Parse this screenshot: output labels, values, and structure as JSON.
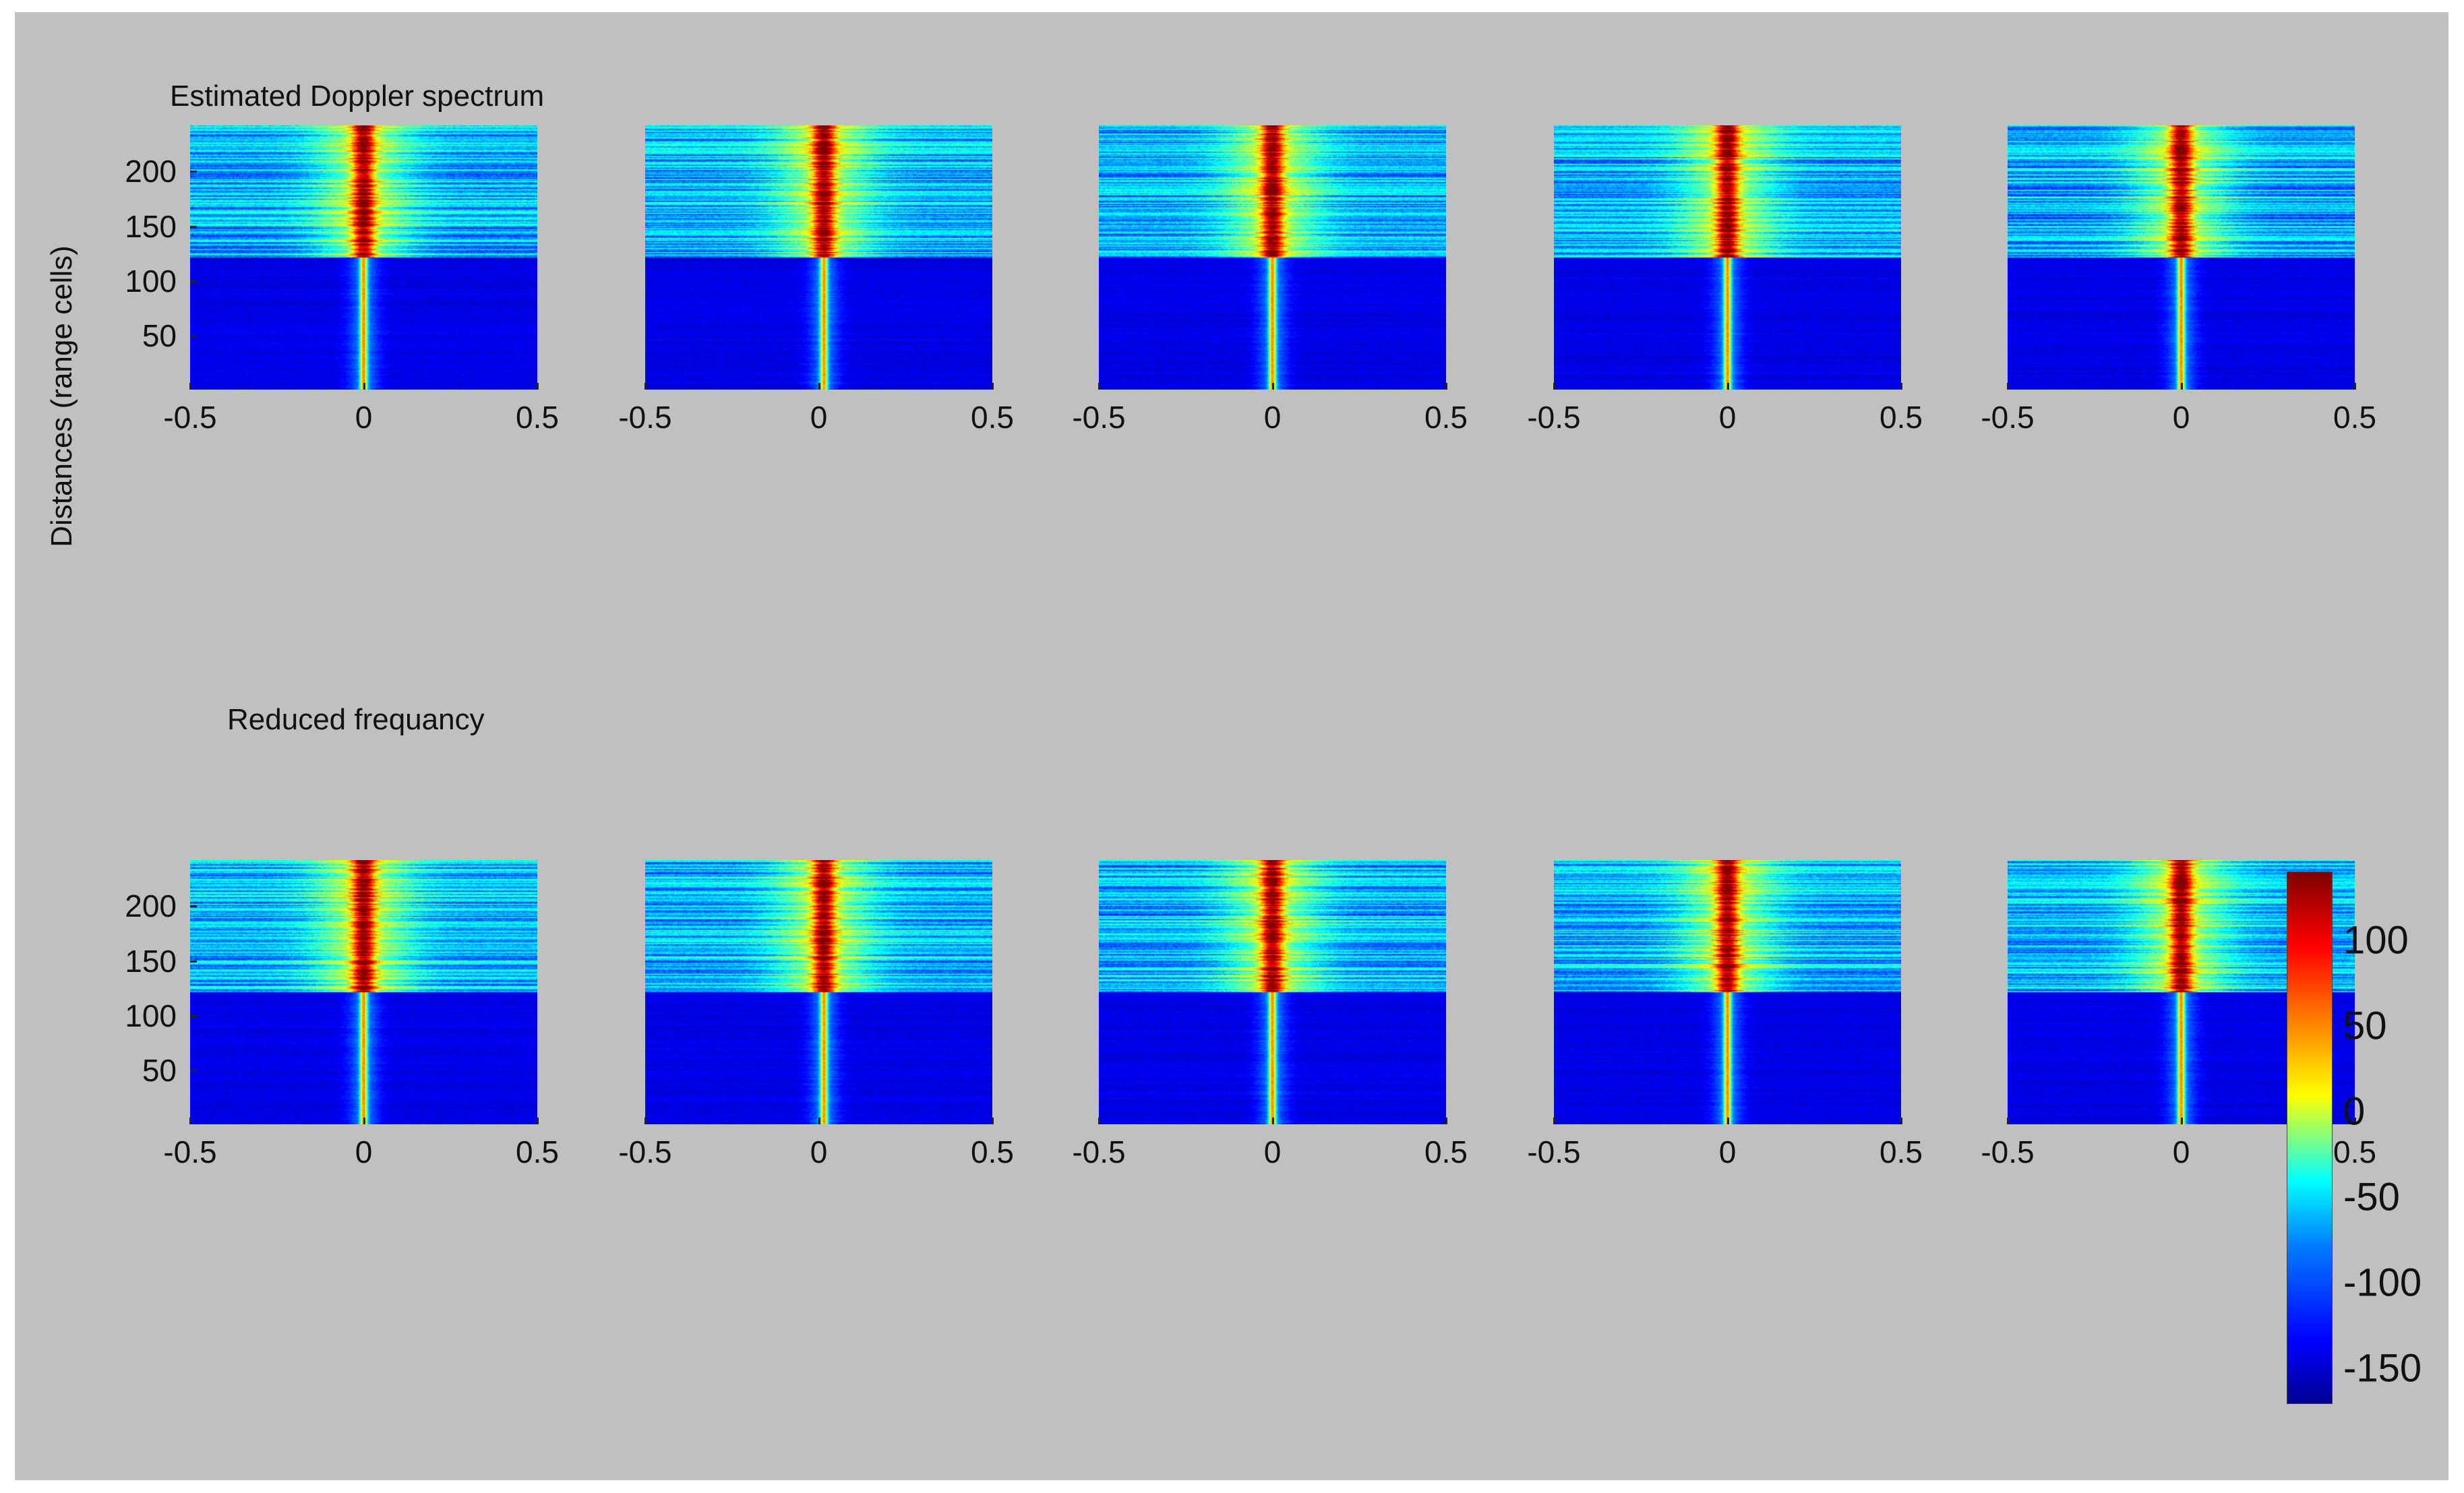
{
  "chart_data": {
    "type": "heatmap",
    "title": "Estimated Doppler spectrum",
    "xlabel": "Reduced frequancy",
    "ylabel": "Distances (range cells)",
    "grid": false,
    "rows": 2,
    "cols": 5,
    "panels": [
      {
        "row": 1,
        "col": 1,
        "xlim": [
          -0.5,
          0.5
        ],
        "ylim": [
          1,
          242
        ],
        "xticks": [
          "-0.5",
          "0",
          "0.5"
        ],
        "yticks": [
          "50",
          "100",
          "150",
          "200"
        ],
        "transition_cell": 121,
        "center_shift": 0.0
      },
      {
        "row": 1,
        "col": 2,
        "xlim": [
          -0.5,
          0.5
        ],
        "ylim": [
          1,
          242
        ],
        "xticks": [
          "-0.5",
          "0",
          "0.5"
        ],
        "yticks": [],
        "transition_cell": 121,
        "center_shift": 0.05
      },
      {
        "row": 1,
        "col": 3,
        "xlim": [
          -0.5,
          0.5
        ],
        "ylim": [
          1,
          242
        ],
        "xticks": [
          "-0.5",
          "0",
          "0.5"
        ],
        "yticks": [],
        "transition_cell": 121,
        "center_shift": 0.0
      },
      {
        "row": 1,
        "col": 4,
        "xlim": [
          -0.5,
          0.5
        ],
        "ylim": [
          1,
          242
        ],
        "xticks": [
          "-0.5",
          "0",
          "0.5"
        ],
        "yticks": [],
        "transition_cell": 121,
        "center_shift": 0.0
      },
      {
        "row": 1,
        "col": 5,
        "xlim": [
          -0.5,
          0.5
        ],
        "ylim": [
          1,
          242
        ],
        "xticks": [
          "-0.5",
          "0",
          "0.5"
        ],
        "yticks": [],
        "transition_cell": 121,
        "center_shift": 0.0
      },
      {
        "row": 2,
        "col": 1,
        "xlim": [
          -0.5,
          0.5
        ],
        "ylim": [
          1,
          242
        ],
        "xticks": [
          "-0.5",
          "0",
          "0.5"
        ],
        "yticks": [
          "50",
          "100",
          "150",
          "200"
        ],
        "transition_cell": 121,
        "center_shift": 0.0
      },
      {
        "row": 2,
        "col": 2,
        "xlim": [
          -0.5,
          0.5
        ],
        "ylim": [
          1,
          242
        ],
        "xticks": [
          "-0.5",
          "0",
          "0.5"
        ],
        "yticks": [],
        "transition_cell": 121,
        "center_shift": 0.05
      },
      {
        "row": 2,
        "col": 3,
        "xlim": [
          -0.5,
          0.5
        ],
        "ylim": [
          1,
          242
        ],
        "xticks": [
          "-0.5",
          "0",
          "0.5"
        ],
        "yticks": [],
        "transition_cell": 121,
        "center_shift": 0.0
      },
      {
        "row": 2,
        "col": 4,
        "xlim": [
          -0.5,
          0.5
        ],
        "ylim": [
          1,
          242
        ],
        "xticks": [
          "-0.5",
          "0",
          "0.5"
        ],
        "yticks": [],
        "transition_cell": 121,
        "center_shift": 0.0
      },
      {
        "row": 2,
        "col": 5,
        "xlim": [
          -0.5,
          0.5
        ],
        "ylim": [
          1,
          242
        ],
        "xticks": [
          "-0.5",
          "0",
          "0.5"
        ],
        "yticks": [],
        "transition_cell": 121,
        "center_shift": 0.0
      }
    ],
    "colorbar": {
      "range": [
        -170,
        140
      ],
      "ticks": [
        "100",
        "50",
        "0",
        "-50",
        "-100",
        "-150"
      ],
      "colormap": "jet"
    }
  }
}
